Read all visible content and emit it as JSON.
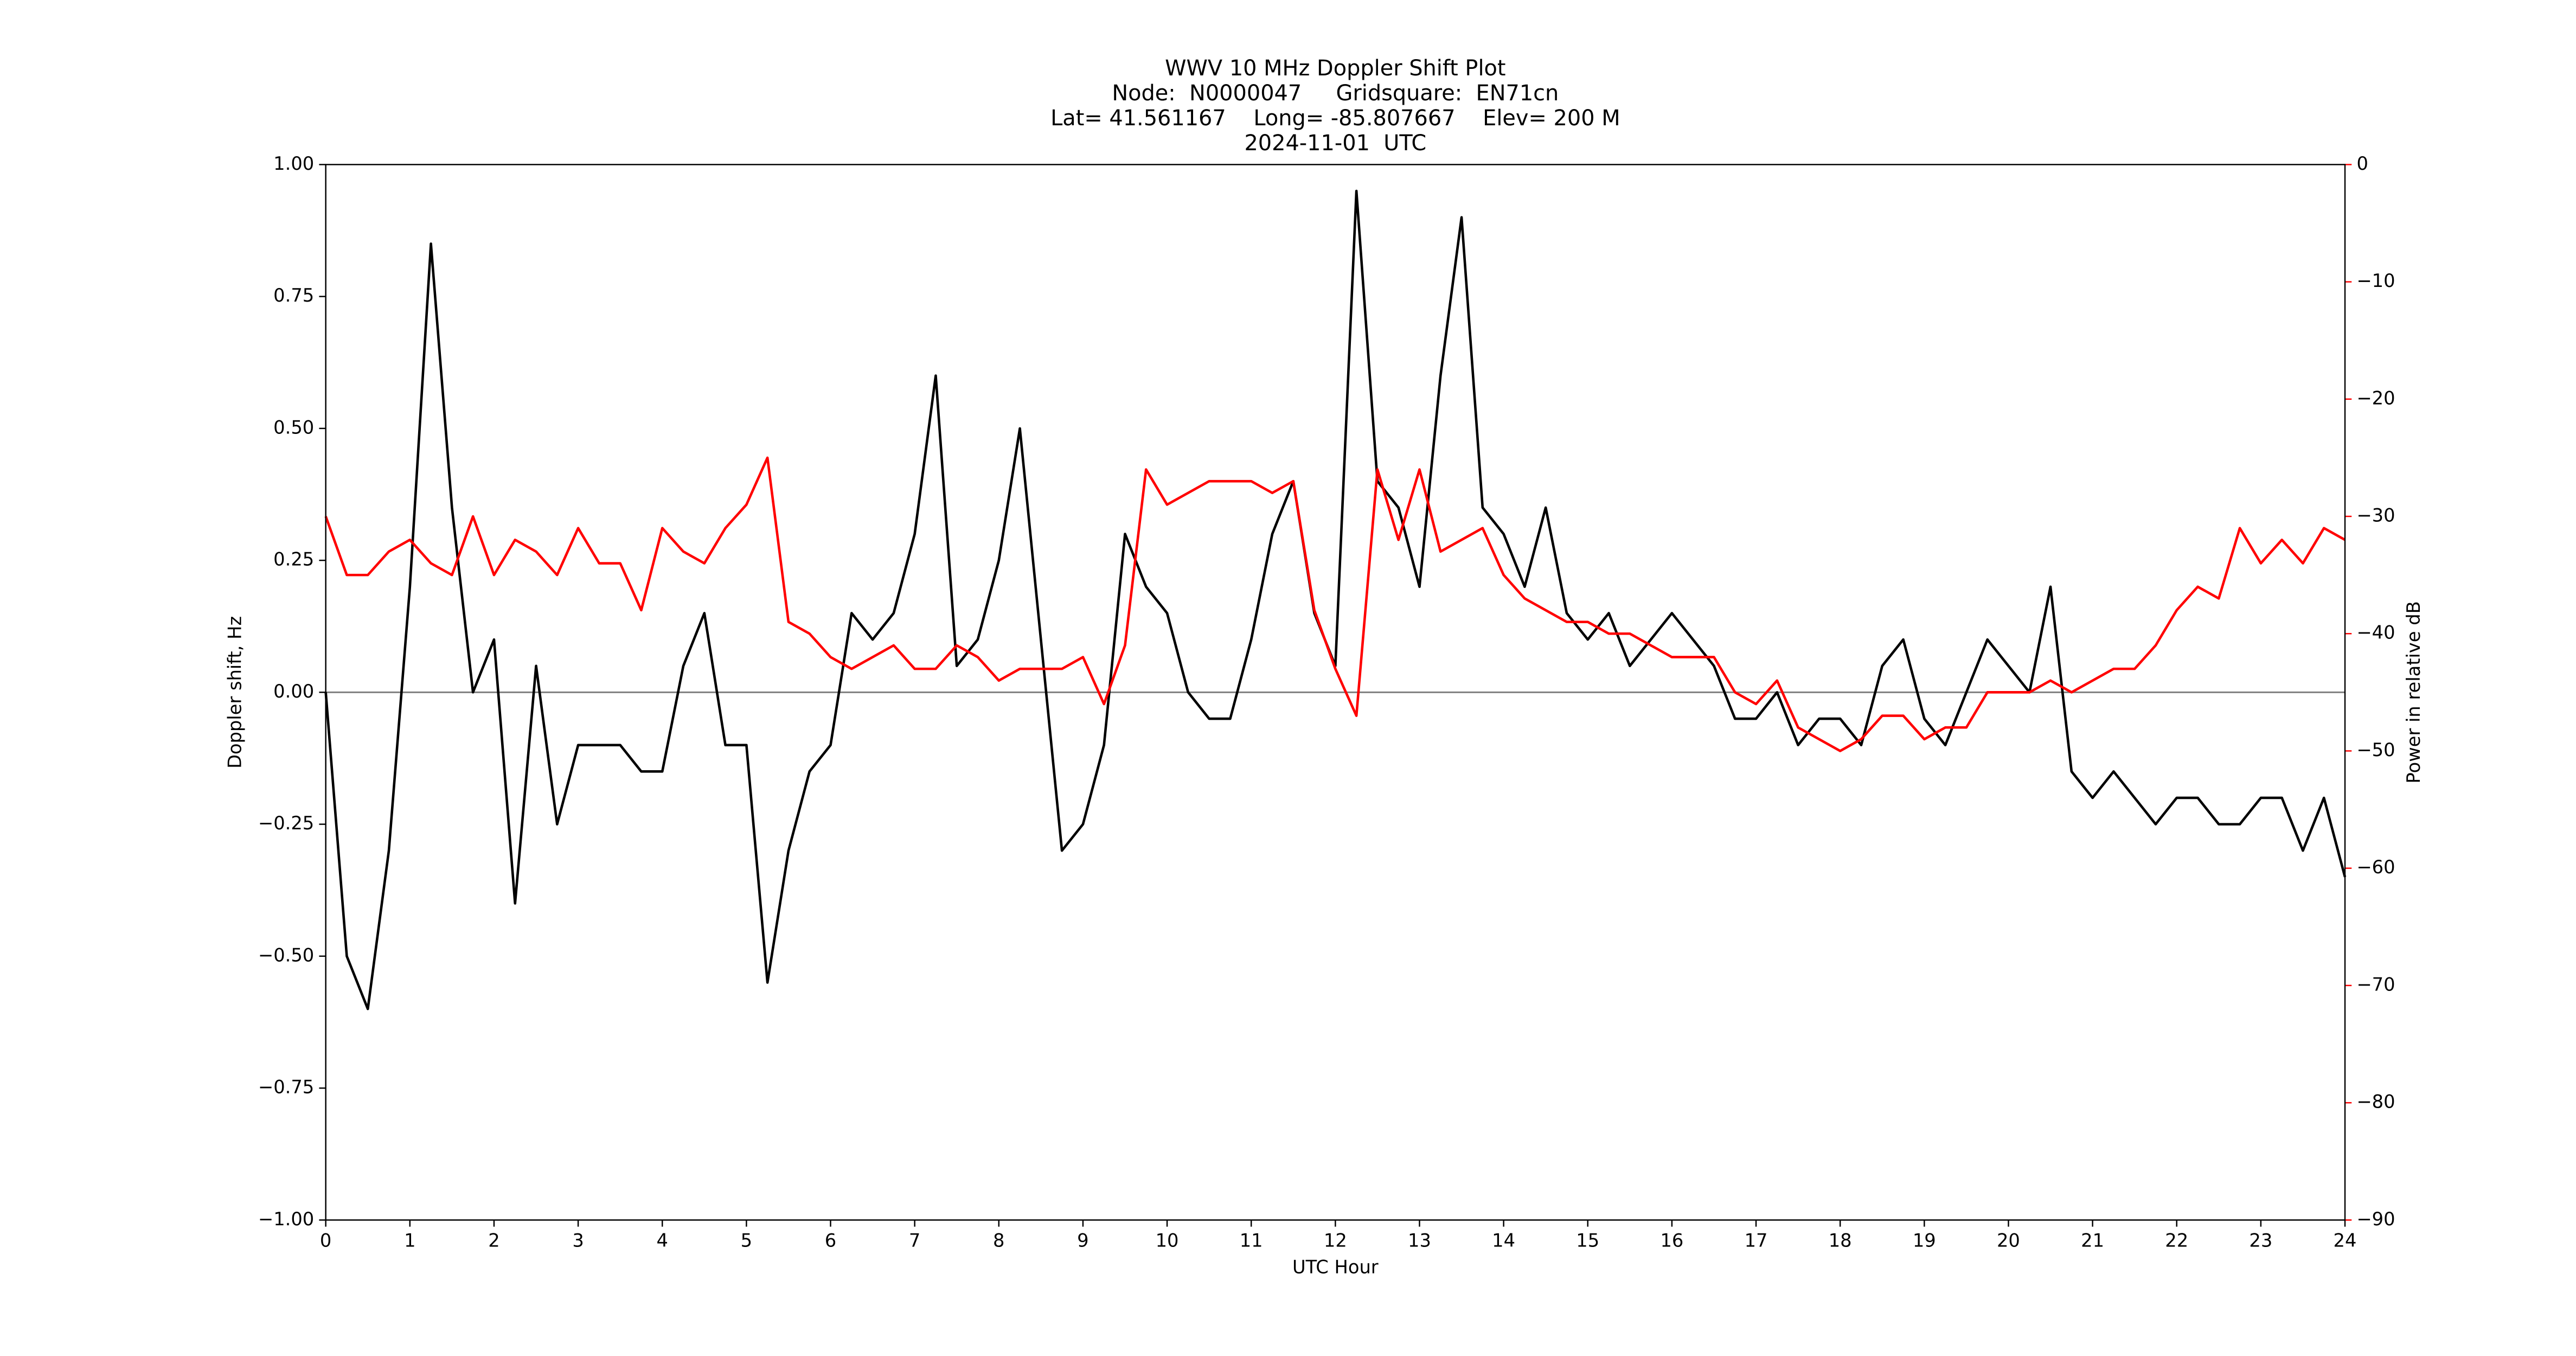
{
  "chart_data": {
    "type": "line",
    "title": "WWV 10 MHz Doppler Shift Plot",
    "subtitle": [
      "Node:  N0000047     Gridsquare:  EN71cn",
      "Lat= 41.561167    Long= -85.807667    Elev= 200 M",
      "2024-11-01  UTC"
    ],
    "xlabel": "UTC Hour",
    "ylabel": "Doppler shift, Hz",
    "y2label": "Power in relative dB",
    "x": [
      0,
      0.25,
      0.5,
      0.75,
      1,
      1.25,
      1.5,
      1.75,
      2,
      2.25,
      2.5,
      2.75,
      3,
      3.25,
      3.5,
      3.75,
      4,
      4.25,
      4.5,
      4.75,
      5,
      5.25,
      5.5,
      5.75,
      6,
      6.25,
      6.5,
      6.75,
      7,
      7.25,
      7.5,
      7.75,
      8,
      8.25,
      8.5,
      8.75,
      9,
      9.25,
      9.5,
      9.75,
      10,
      10.25,
      10.5,
      10.75,
      11,
      11.25,
      11.5,
      11.75,
      12,
      12.25,
      12.5,
      12.75,
      13,
      13.25,
      13.5,
      13.75,
      14,
      14.25,
      14.5,
      14.75,
      15,
      15.25,
      15.5,
      15.75,
      16,
      16.25,
      16.5,
      16.75,
      17,
      17.25,
      17.5,
      17.75,
      18,
      18.25,
      18.5,
      18.75,
      19,
      19.25,
      19.5,
      19.75,
      20,
      20.25,
      20.5,
      20.75,
      21,
      21.25,
      21.5,
      21.75,
      22,
      22.25,
      22.5,
      22.75,
      23,
      23.25,
      23.5,
      23.75,
      24
    ],
    "series": [
      {
        "name": "Doppler shift",
        "color": "#000000",
        "values": [
          0.0,
          -0.5,
          -0.6,
          -0.3,
          0.2,
          0.85,
          0.35,
          0.0,
          0.1,
          -0.4,
          0.05,
          -0.25,
          -0.1,
          -0.1,
          -0.1,
          -0.15,
          -0.15,
          0.05,
          0.15,
          -0.1,
          -0.1,
          -0.55,
          -0.3,
          -0.15,
          -0.1,
          0.15,
          0.1,
          0.15,
          0.3,
          0.6,
          0.05,
          0.1,
          0.25,
          0.5,
          0.1,
          -0.3,
          -0.25,
          -0.1,
          0.3,
          0.2,
          0.15,
          0.0,
          -0.05,
          -0.05,
          0.1,
          0.3,
          0.4,
          0.15,
          0.05,
          0.95,
          0.4,
          0.35,
          0.2,
          0.6,
          0.9,
          0.35,
          0.3,
          0.2,
          0.35,
          0.15,
          0.1,
          0.15,
          0.05,
          0.1,
          0.15,
          0.1,
          0.05,
          -0.05,
          -0.05,
          0.0,
          -0.1,
          -0.05,
          -0.05,
          -0.1,
          0.05,
          0.1,
          -0.05,
          -0.1,
          0.0,
          0.1,
          0.05,
          0.0,
          0.2,
          -0.15,
          -0.2,
          -0.15,
          -0.2,
          -0.25,
          -0.2,
          -0.2,
          -0.25,
          -0.25,
          -0.2,
          -0.2,
          -0.3,
          -0.2,
          -0.35
        ]
      },
      {
        "name": "Power",
        "color": "#ff0000",
        "axis": "y2",
        "values": [
          -30,
          -35,
          -35,
          -33,
          -32,
          -34,
          -35,
          -30,
          -35,
          -32,
          -33,
          -35,
          -31,
          -34,
          -34,
          -38,
          -31,
          -33,
          -34,
          -31,
          -29,
          -25,
          -39,
          -40,
          -42,
          -43,
          -42,
          -41,
          -43,
          -43,
          -41,
          -42,
          -44,
          -43,
          -43,
          -43,
          -42,
          -46,
          -41,
          -26,
          -29,
          -28,
          -27,
          -27,
          -27,
          -28,
          -27,
          -38,
          -43,
          -47,
          -26,
          -32,
          -26,
          -33,
          -32,
          -31,
          -35,
          -37,
          -38,
          -39,
          -39,
          -40,
          -40,
          -41,
          -42,
          -42,
          -42,
          -45,
          -46,
          -44,
          -48,
          -49,
          -50,
          -49,
          -47,
          -47,
          -49,
          -48,
          -48,
          -45,
          -45,
          -45,
          -44,
          -45,
          -44,
          -43,
          -43,
          -41,
          -38,
          -36,
          -37,
          -31,
          -34,
          -32,
          -34,
          -31,
          -32
        ]
      }
    ],
    "xlim": [
      0,
      24
    ],
    "xticks": [
      0,
      1,
      2,
      3,
      4,
      5,
      6,
      7,
      8,
      9,
      10,
      11,
      12,
      13,
      14,
      15,
      16,
      17,
      18,
      19,
      20,
      21,
      22,
      23,
      24
    ],
    "ylim": [
      -1,
      1
    ],
    "yticks": [
      {
        "value": -1,
        "label": "−1.00"
      },
      {
        "value": -0.75,
        "label": "−0.75"
      },
      {
        "value": -0.5,
        "label": "−0.50"
      },
      {
        "value": -0.25,
        "label": "−0.25"
      },
      {
        "value": 0,
        "label": "0.00"
      },
      {
        "value": 0.25,
        "label": "0.25"
      },
      {
        "value": 0.5,
        "label": "0.50"
      },
      {
        "value": 0.75,
        "label": "0.75"
      },
      {
        "value": 1,
        "label": "1.00"
      }
    ],
    "y2lim": [
      -90,
      0
    ],
    "y2ticks": [
      {
        "value": -90,
        "label": "−90"
      },
      {
        "value": -80,
        "label": "−80"
      },
      {
        "value": -70,
        "label": "−70"
      },
      {
        "value": -60,
        "label": "−60"
      },
      {
        "value": -50,
        "label": "−50"
      },
      {
        "value": -40,
        "label": "−40"
      },
      {
        "value": -30,
        "label": "−30"
      },
      {
        "value": -20,
        "label": "−20"
      },
      {
        "value": -10,
        "label": "−10"
      },
      0
    ],
    "y2color": "#ff0000"
  }
}
